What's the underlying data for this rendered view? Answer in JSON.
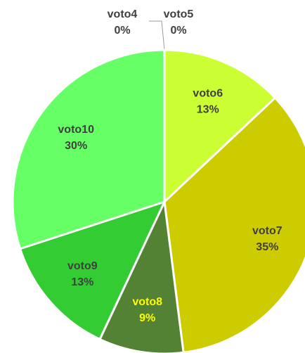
{
  "chart_data": {
    "type": "pie",
    "categories": [
      "voto4",
      "voto5",
      "voto6",
      "voto7",
      "voto8",
      "voto9",
      "voto10"
    ],
    "values": [
      0,
      0,
      13,
      35,
      9,
      13,
      30
    ],
    "value_labels": [
      "0%",
      "0%",
      "13%",
      "35%",
      "9%",
      "13%",
      "30%"
    ],
    "colors": [
      "#999999",
      "#bbbbbb",
      "#ccff33",
      "#cccc00",
      "#548235",
      "#33cc33",
      "#66ff66"
    ],
    "label_colors": [
      "#404040",
      "#404040",
      "#404040",
      "#404040",
      "#ffff00",
      "#404040",
      "#404040"
    ]
  }
}
